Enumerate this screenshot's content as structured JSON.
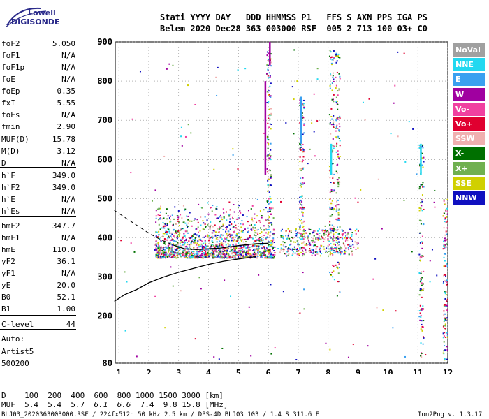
{
  "logo": {
    "line1": "Lowell",
    "line2": "DIGISONDE"
  },
  "header": {
    "row1": "Stati YYYY DAY   DDD HHMMSS P1   FFS S AXN PPS IGA PS",
    "row2": "Belem 2020 Dec28 363 003000 RSF  005 2 713 100 03+ C0"
  },
  "params": [
    {
      "k": "foF2",
      "v": "5.050"
    },
    {
      "k": "foF1",
      "v": "N/A"
    },
    {
      "k": "foF1p",
      "v": "N/A"
    },
    {
      "k": "foE",
      "v": "N/A"
    },
    {
      "k": "foEp",
      "v": "0.35"
    },
    {
      "k": "fxI",
      "v": "5.55"
    },
    {
      "k": "foEs",
      "v": "N/A"
    },
    {
      "k": "fmin",
      "v": "2.90"
    },
    {
      "k": "MUF(D)",
      "v": "15.78"
    },
    {
      "k": "M(D)",
      "v": "3.12"
    },
    {
      "k": "D",
      "v": "N/A"
    },
    {
      "k": "h`F",
      "v": "349.0"
    },
    {
      "k": "h`F2",
      "v": "349.0"
    },
    {
      "k": "h`E",
      "v": "N/A"
    },
    {
      "k": "h`Es",
      "v": "N/A"
    },
    {
      "k": "hmF2",
      "v": "347.7"
    },
    {
      "k": "hmF1",
      "v": "N/A"
    },
    {
      "k": "hmE",
      "v": "110.0"
    },
    {
      "k": "yF2",
      "v": "36.1"
    },
    {
      "k": "yF1",
      "v": "N/A"
    },
    {
      "k": "yE",
      "v": "20.0"
    },
    {
      "k": "B0",
      "v": "52.1"
    },
    {
      "k": "B1",
      "v": "1.00"
    },
    {
      "k": "C-level",
      "v": "44"
    }
  ],
  "auto": {
    "line1": "Auto:",
    "line2": "Artist5",
    "line3": "500200"
  },
  "legend": [
    {
      "label": "NoVal",
      "color": "#a0a0a0"
    },
    {
      "label": "NNE",
      "color": "#22d8f0"
    },
    {
      "label": "E",
      "color": "#3aa0f0"
    },
    {
      "label": "W",
      "color": "#a000a0"
    },
    {
      "label": "Vo-",
      "color": "#f040a0"
    },
    {
      "label": "Vo+",
      "color": "#e00030"
    },
    {
      "label": "SSW",
      "color": "#f0b0b0"
    },
    {
      "label": "X-",
      "color": "#007000"
    },
    {
      "label": "X+",
      "color": "#70b050"
    },
    {
      "label": "SSE",
      "color": "#d0d000"
    },
    {
      "label": "NNW",
      "color": "#1010c0"
    }
  ],
  "footer": {
    "row1": "D    100  200  400  600  800 1000 1500 3000 [km]",
    "row2_head": "MUF  5.4  5.4  5.7  ",
    "row2_italic": "6.1  6.6",
    "row2_tail": "  7.4  9.8 15.8 [MHz]",
    "row3": "BLJ03_2020363003000.RSF / 224fx512h 50 kHz 2.5 km / DPS-4D BLJ03 103 / 1.4 S 311.6 E",
    "version": "Ion2Png v. 1.3.17"
  },
  "chart_data": {
    "type": "scatter",
    "xlim": [
      1,
      12
    ],
    "ylim": [
      80,
      900
    ],
    "xticks": [
      1,
      2,
      3,
      4,
      5,
      6,
      7,
      8,
      9,
      10,
      11,
      12
    ],
    "yticks": [
      80,
      200,
      300,
      400,
      500,
      600,
      700,
      800,
      900
    ],
    "grid": true,
    "legend_placement": "right",
    "curve_trace": [
      [
        0.85,
        238
      ],
      [
        1.2,
        255
      ],
      [
        1.6,
        268
      ],
      [
        2.0,
        285
      ],
      [
        2.5,
        300
      ],
      [
        3.0,
        312
      ],
      [
        3.5,
        322
      ],
      [
        4.0,
        332
      ],
      [
        4.5,
        340
      ],
      [
        5.0,
        346
      ],
      [
        5.3,
        349
      ],
      [
        5.6,
        352
      ]
    ],
    "curve_dashed": [
      [
        0.85,
        470
      ],
      [
        1.2,
        452
      ],
      [
        1.6,
        432
      ],
      [
        2.0,
        412
      ],
      [
        2.4,
        395
      ],
      [
        2.8,
        382
      ]
    ],
    "curve_profile_mid": [
      [
        2.8,
        382
      ],
      [
        3.2,
        372
      ],
      [
        3.6,
        370
      ],
      [
        4.0,
        372
      ],
      [
        4.4,
        374
      ],
      [
        5.0,
        380
      ],
      [
        5.6,
        385
      ],
      [
        6.0,
        386
      ]
    ],
    "vertical_bands": [
      {
        "x": 5.9,
        "y0": 560,
        "y1": 800,
        "color": "#a000a0"
      },
      {
        "x": 6.05,
        "y0": 840,
        "y1": 900,
        "color": "#a000a0"
      },
      {
        "x": 7.1,
        "y0": 640,
        "y1": 760,
        "color": "#3aa0f0"
      },
      {
        "x": 8.1,
        "y0": 560,
        "y1": 640,
        "color": "#22d8f0"
      },
      {
        "x": 11.1,
        "y0": 560,
        "y1": 640,
        "color": "#22d8f0"
      }
    ]
  }
}
